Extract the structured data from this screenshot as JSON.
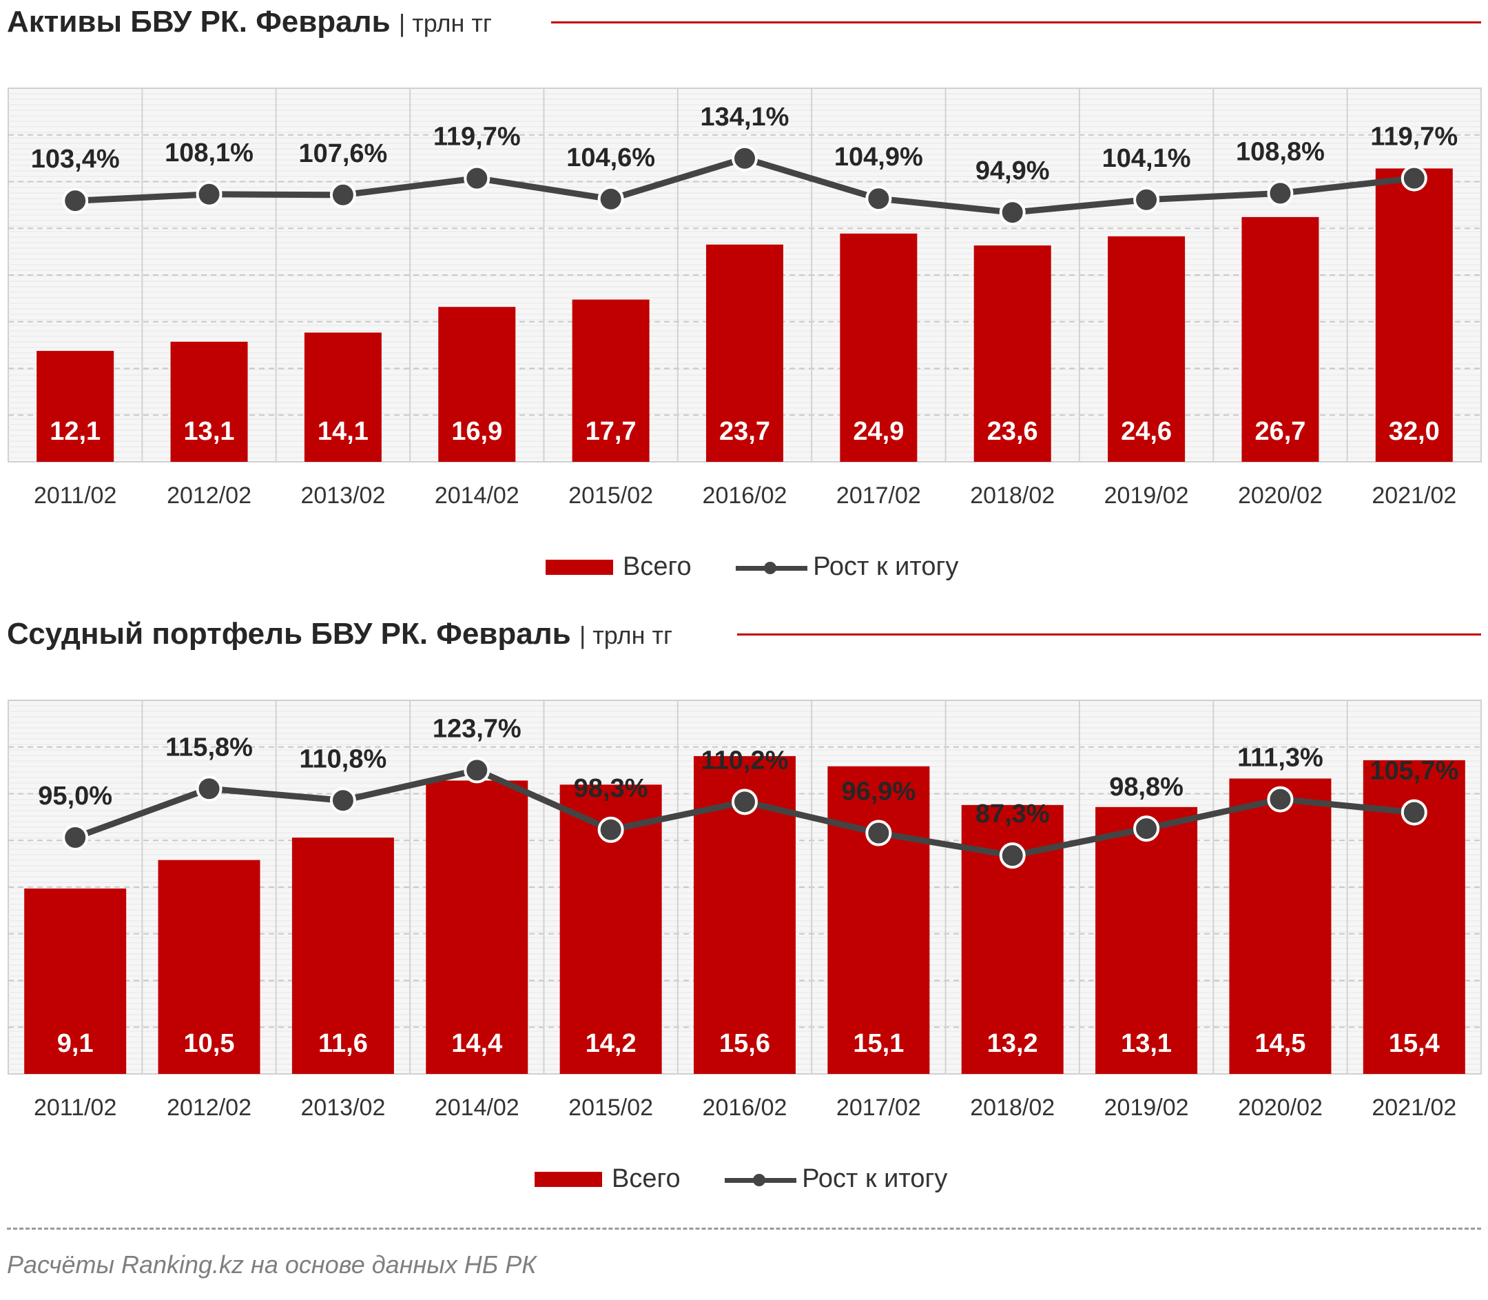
{
  "charts": [
    {
      "title": "Активы БВУ РК. Февраль",
      "unit": "| трлн тг",
      "legend": {
        "bar": "Всего",
        "line": "Рост к итогу"
      }
    },
    {
      "title": "Ссудный портфель БВУ РК. Февраль",
      "unit": "| трлн тг",
      "legend": {
        "bar": "Всего",
        "line": "Рост к итогу"
      }
    }
  ],
  "footer": {
    "note": "Расчёты Ranking.kz на основе данных  НБ РК"
  },
  "colors": {
    "bar": "#c00000",
    "line": "#444444",
    "rule": "#c00000"
  },
  "chart_data": [
    {
      "type": "bar",
      "title": "Активы БВУ РК. Февраль",
      "ylabel": "трлн тг",
      "categories": [
        "2011/02",
        "2012/02",
        "2013/02",
        "2014/02",
        "2015/02",
        "2016/02",
        "2017/02",
        "2018/02",
        "2019/02",
        "2020/02",
        "2021/02"
      ],
      "series": [
        {
          "name": "Всего",
          "kind": "bar",
          "values": [
            12.1,
            13.1,
            14.1,
            16.9,
            17.7,
            23.7,
            24.9,
            23.6,
            24.6,
            26.7,
            32.0
          ],
          "labels": [
            "12,1",
            "13,1",
            "14,1",
            "16,9",
            "17,7",
            "23,7",
            "24,9",
            "23,6",
            "24,6",
            "26,7",
            "32,0"
          ]
        },
        {
          "name": "Рост к итогу",
          "kind": "line",
          "secondary_axis": true,
          "values": [
            103.4,
            108.1,
            107.6,
            119.7,
            104.6,
            134.1,
            104.9,
            94.9,
            104.1,
            108.8,
            119.7
          ],
          "labels": [
            "103,4%",
            "108,1%",
            "107,6%",
            "119,7%",
            "104,6%",
            "134,1%",
            "104,9%",
            "94,9%",
            "104,1%",
            "108,8%",
            "119,7%"
          ]
        }
      ],
      "ylim": [
        0,
        40
      ],
      "grid": true
    },
    {
      "type": "bar",
      "title": "Ссудный портфель БВУ РК. Февраль",
      "ylabel": "трлн тг",
      "categories": [
        "2011/02",
        "2012/02",
        "2013/02",
        "2014/02",
        "2015/02",
        "2016/02",
        "2017/02",
        "2018/02",
        "2019/02",
        "2020/02",
        "2021/02"
      ],
      "series": [
        {
          "name": "Всего",
          "kind": "bar",
          "values": [
            9.1,
            10.5,
            11.6,
            14.4,
            14.2,
            15.6,
            15.1,
            13.2,
            13.1,
            14.5,
            15.4
          ],
          "labels": [
            "9,1",
            "10,5",
            "11,6",
            "14,4",
            "14,2",
            "15,6",
            "15,1",
            "13,2",
            "13,1",
            "14,5",
            "15,4"
          ]
        },
        {
          "name": "Рост к итогу",
          "kind": "line",
          "secondary_axis": true,
          "values": [
            95.0,
            115.8,
            110.8,
            123.7,
            98.3,
            110.2,
            96.9,
            87.3,
            98.8,
            111.3,
            105.7
          ],
          "labels": [
            "95,0%",
            "115,8%",
            "110,8%",
            "123,7%",
            "98,3%",
            "110,2%",
            "96,9%",
            "87,3%",
            "98,8%",
            "111,3%",
            "105,7%"
          ]
        }
      ],
      "ylim": [
        0,
        18
      ],
      "grid": true
    }
  ]
}
